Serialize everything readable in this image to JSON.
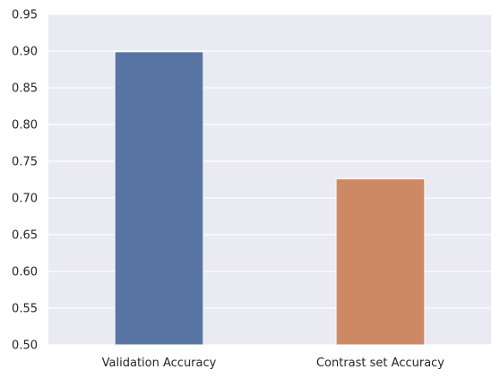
{
  "chart_data": {
    "type": "bar",
    "title": "",
    "xlabel": "",
    "ylabel": "",
    "categories": [
      "Validation Accuracy",
      "Contrast set Accuracy"
    ],
    "values": [
      0.899,
      0.726
    ],
    "colors": [
      "#5975a4",
      "#cc8963"
    ],
    "ylim": [
      0.5,
      0.95
    ],
    "yticks": [
      "0.50",
      "0.55",
      "0.60",
      "0.65",
      "0.70",
      "0.75",
      "0.80",
      "0.85",
      "0.90",
      "0.95"
    ],
    "grid": true,
    "legend": "none",
    "style": {
      "background": "#eaeaf2",
      "grid_color": "#ffffff"
    }
  }
}
